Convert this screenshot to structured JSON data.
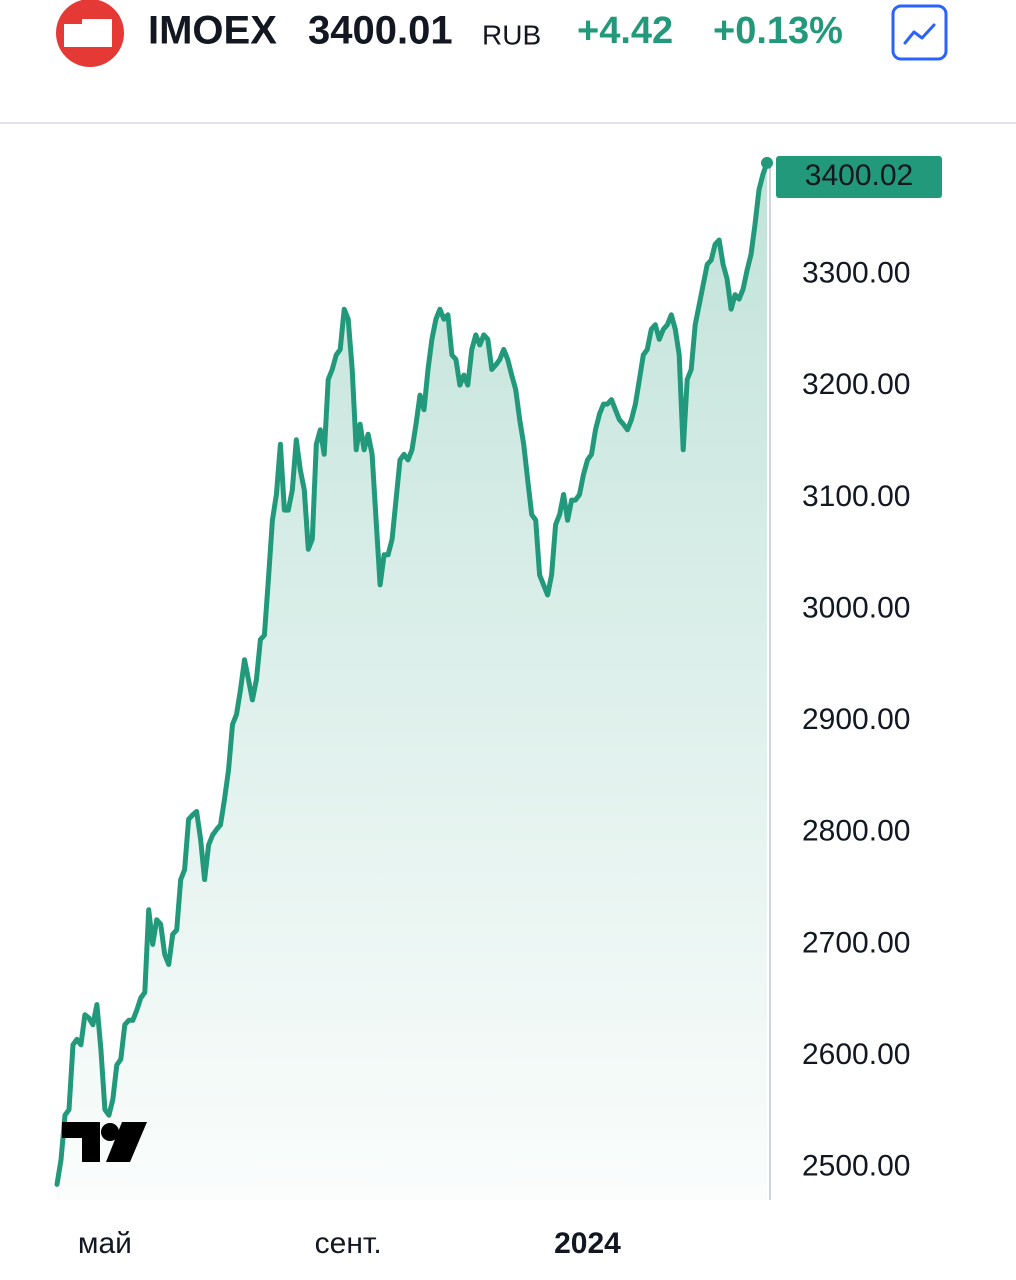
{
  "header": {
    "symbol": "IMOEX",
    "price": "3400.01",
    "currency": "RUB",
    "change": "+4.42",
    "change_percent": "+0.13%"
  },
  "chart_data": {
    "type": "area",
    "color": "#22997a",
    "grid": false,
    "categories": [
      null,
      null,
      null,
      null,
      null,
      null,
      null,
      null,
      null,
      null,
      null,
      null,
      "май",
      null,
      null,
      null,
      null,
      null,
      null,
      null,
      null,
      null,
      null,
      null,
      null,
      null,
      null,
      null,
      null,
      null,
      null,
      null,
      null,
      null,
      null,
      null,
      null,
      null,
      null,
      null,
      null,
      null,
      null,
      null,
      null,
      null,
      null,
      null,
      null,
      null,
      null,
      null,
      null,
      null,
      null,
      null,
      null,
      null,
      null,
      null,
      null,
      null,
      null,
      null,
      null,
      null,
      null,
      null,
      null,
      null,
      null,
      null,
      null,
      "сент.",
      null,
      null,
      null,
      null,
      null,
      null,
      null,
      null,
      null,
      null,
      null,
      null,
      null,
      null,
      null,
      null,
      null,
      null,
      null,
      null,
      null,
      null,
      null,
      null,
      null,
      null,
      null,
      null,
      null,
      null,
      null,
      null,
      null,
      null,
      null,
      null,
      null,
      null,
      null,
      null,
      null,
      null,
      null,
      null,
      null,
      null,
      null,
      null,
      null,
      null,
      null,
      null,
      null,
      null,
      null,
      null,
      null,
      null,
      null,
      "2024",
      null,
      null,
      null,
      null,
      null,
      null,
      null,
      null,
      null,
      null,
      null,
      null,
      null,
      null,
      null,
      null,
      null,
      null,
      null,
      null,
      null,
      null,
      null,
      null,
      null,
      null,
      null,
      null,
      null,
      null,
      null,
      null,
      null,
      null,
      null,
      null,
      null,
      null,
      null,
      null,
      null,
      null,
      null,
      null,
      null
    ],
    "values": [
      2485,
      2507,
      2547,
      2552,
      2610,
      2615,
      2610,
      2637,
      2634,
      2628,
      2646,
      2606,
      2552,
      2547,
      2561,
      2592,
      2597,
      2628,
      2632,
      2632,
      2641,
      2652,
      2657,
      2731,
      2700,
      2722,
      2718,
      2691,
      2682,
      2709,
      2713,
      2758,
      2767,
      2812,
      2816,
      2819,
      2794,
      2758,
      2789,
      2798,
      2803,
      2807,
      2830,
      2856,
      2897,
      2906,
      2928,
      2955,
      2937,
      2919,
      2937,
      2973,
      2977,
      3027,
      3080,
      3103,
      3148,
      3089,
      3089,
      3107,
      3152,
      3125,
      3107,
      3054,
      3063,
      3148,
      3161,
      3139,
      3206,
      3215,
      3228,
      3233,
      3269,
      3260,
      3215,
      3143,
      3166,
      3143,
      3157,
      3139,
      3080,
      3022,
      3049,
      3049,
      3063,
      3098,
      3134,
      3139,
      3134,
      3143,
      3166,
      3192,
      3179,
      3215,
      3242,
      3260,
      3269,
      3260,
      3264,
      3228,
      3224,
      3201,
      3210,
      3201,
      3233,
      3246,
      3237,
      3246,
      3242,
      3215,
      3219,
      3224,
      3233,
      3224,
      3210,
      3197,
      3170,
      3148,
      3116,
      3085,
      3080,
      3031,
      3022,
      3013,
      3031,
      3076,
      3085,
      3103,
      3080,
      3098,
      3098,
      3103,
      3121,
      3134,
      3139,
      3161,
      3175,
      3184,
      3184,
      3188,
      3179,
      3170,
      3166,
      3161,
      3170,
      3184,
      3206,
      3228,
      3233,
      3251,
      3255,
      3242,
      3251,
      3255,
      3264,
      3251,
      3228,
      3143,
      3206,
      3215,
      3255,
      3273,
      3291,
      3309,
      3313,
      3327,
      3331,
      3309,
      3296,
      3269,
      3282,
      3278,
      3287,
      3304,
      3318,
      3345,
      3376,
      3390,
      3400.02
    ],
    "ylim": [
      2471,
      3434
    ],
    "yticks": [
      {
        "value": 2500,
        "label": "2500.00"
      },
      {
        "value": 2600,
        "label": "2600.00"
      },
      {
        "value": 2700,
        "label": "2700.00"
      },
      {
        "value": 2800,
        "label": "2800.00"
      },
      {
        "value": 2900,
        "label": "2900.00"
      },
      {
        "value": 3000,
        "label": "3000.00"
      },
      {
        "value": 3100,
        "label": "3100.00"
      },
      {
        "value": 3200,
        "label": "3200.00"
      },
      {
        "value": 3300,
        "label": "3300.00"
      }
    ]
  }
}
